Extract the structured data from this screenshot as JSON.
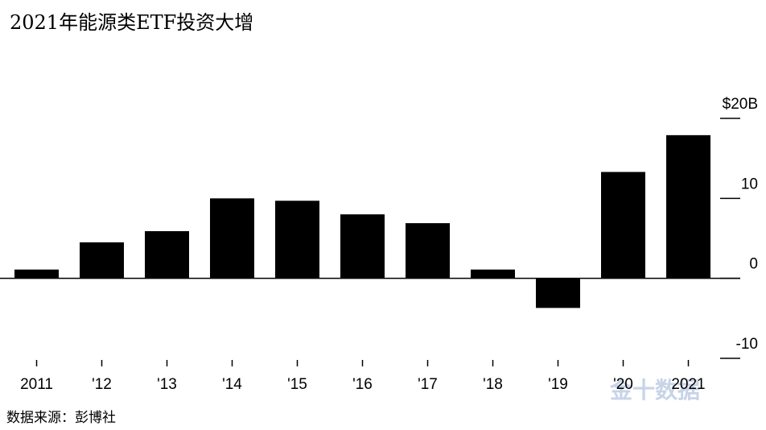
{
  "chart_data": {
    "type": "bar",
    "title": "2021年能源类ETF投资大增",
    "categories": [
      "2011",
      "'12",
      "'13",
      "'14",
      "'15",
      "'16",
      "'17",
      "'18",
      "'19",
      "'20",
      "2021"
    ],
    "values": [
      1.1,
      4.5,
      5.9,
      10.0,
      9.7,
      8.0,
      6.9,
      1.1,
      -3.7,
      13.3,
      17.9
    ],
    "color": "#000000",
    "ylim": [
      -10,
      20
    ],
    "yticks": [
      {
        "value": -10,
        "label": "-10"
      },
      0,
      10,
      {
        "value": 20,
        "label": "$20B"
      }
    ],
    "source": "数据来源：彭博社",
    "watermark": "金十数据"
  }
}
